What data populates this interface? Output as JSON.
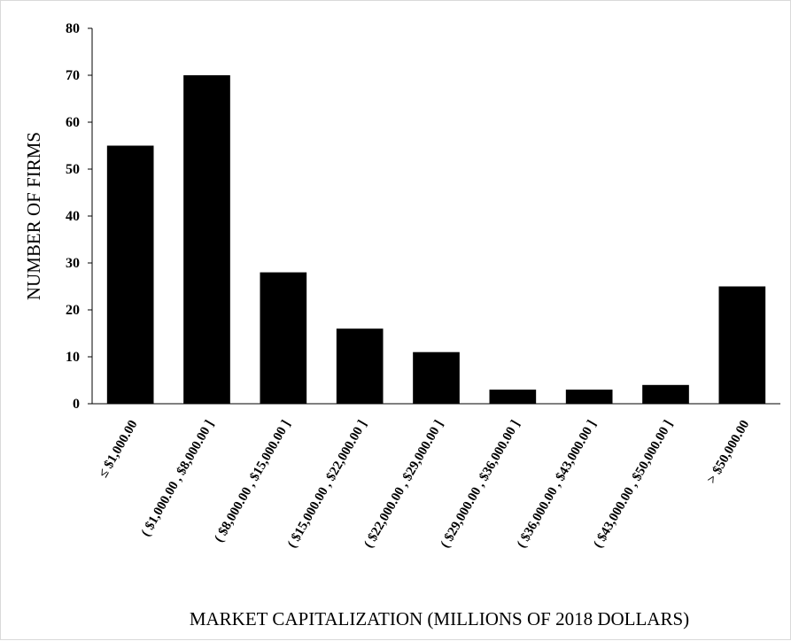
{
  "chart_data": {
    "type": "bar",
    "title": "",
    "xlabel": "MARKET CAPITALIZATION (MILLIONS OF 2018 DOLLARS)",
    "ylabel": "NUMBER OF FIRMS",
    "ylim": [
      0,
      80
    ],
    "yticks": [
      "0",
      "10",
      "20",
      "30",
      "40",
      "50",
      "60",
      "70",
      "80"
    ],
    "grid": false,
    "legend": "none",
    "categories": [
      "≤ $1,000.00",
      "( $1,000.00 , $8,000.00 ]",
      "( $8,000.00 , $15,000.00 ]",
      "( $15,000.00 , $22,000.00 ]",
      "( $22,000.00 , $29,000.00 ]",
      "( $29,000.00 , $36,000.00 ]",
      "( $36,000.00 , $43,000.00 ]",
      "( $43,000.00 , $50,000.00 ]",
      "> $50,000.00"
    ],
    "values": [
      55,
      70,
      28,
      16,
      11,
      3,
      3,
      4,
      25
    ],
    "bar_color": "#000000"
  }
}
